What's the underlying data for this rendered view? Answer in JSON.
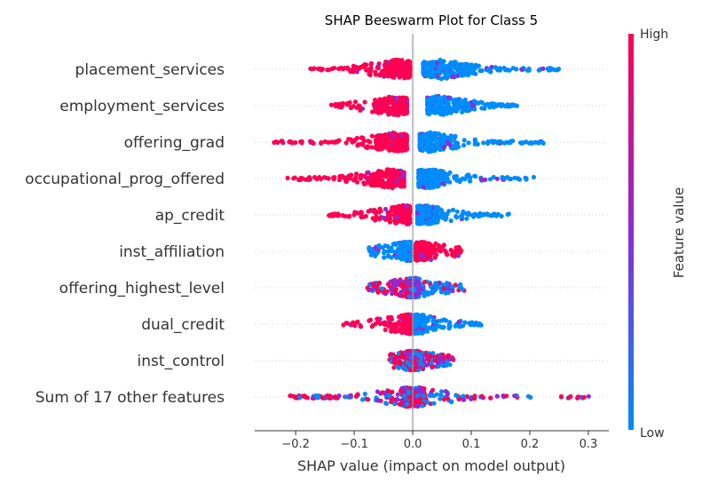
{
  "chart_data": {
    "type": "scatter",
    "subtype": "shap-beeswarm",
    "title": "SHAP Beeswarm Plot for Class 5",
    "xlabel": "SHAP value (impact on model output)",
    "xlim": [
      -0.27,
      0.335
    ],
    "x_ticks": [
      -0.2,
      -0.1,
      0.0,
      0.1,
      0.2,
      0.3
    ],
    "x_tick_labels": [
      "−0.2",
      "−0.1",
      "0.0",
      "0.1",
      "0.2",
      "0.3"
    ],
    "zero_line": 0,
    "colorbar": {
      "label": "Feature value",
      "high_label": "High",
      "low_label": "Low",
      "high_color": "#ff0052",
      "mid_color": "#8b2cd6",
      "low_color": "#008bfb"
    },
    "features": [
      {
        "name": "placement_services",
        "neg_range": [
          -0.19,
          -0.005
        ],
        "neg_color": "high",
        "pos_range": [
          0.018,
          0.255
        ],
        "pos_color": "low",
        "dense_neg": -0.025,
        "dense_pos": 0.05
      },
      {
        "name": "employment_services",
        "neg_range": [
          -0.14,
          -0.01
        ],
        "neg_color": "high",
        "pos_range": [
          0.025,
          0.185
        ],
        "pos_color": "low",
        "dense_neg": -0.03,
        "dense_pos": 0.045
      },
      {
        "name": "offering_grad",
        "neg_range": [
          -0.245,
          -0.01
        ],
        "neg_color": "high",
        "pos_range": [
          0.012,
          0.23
        ],
        "pos_color": "low",
        "dense_neg": -0.03,
        "dense_pos": 0.03
      },
      {
        "name": "occupational_prog_offered",
        "neg_range": [
          -0.215,
          -0.015
        ],
        "neg_color": "high",
        "pos_range": [
          0.01,
          0.21
        ],
        "pos_color": "low",
        "dense_neg": -0.035,
        "dense_pos": 0.025
      },
      {
        "name": "ap_credit",
        "neg_range": [
          -0.145,
          -0.005
        ],
        "neg_color": "high",
        "pos_range": [
          0.008,
          0.165
        ],
        "pos_color": "low",
        "dense_neg": -0.015,
        "dense_pos": 0.02
      },
      {
        "name": "inst_affiliation",
        "neg_range": [
          -0.075,
          -0.003
        ],
        "neg_color": "low",
        "pos_range": [
          0.005,
          0.085
        ],
        "pos_color": "high",
        "dense_neg": -0.01,
        "dense_pos": 0.015
      },
      {
        "name": "offering_highest_level",
        "neg_range": [
          -0.08,
          -0.002
        ],
        "neg_color": "mixed-high",
        "pos_range": [
          0.002,
          0.088
        ],
        "pos_color": "mixed-low",
        "dense_neg": -0.005,
        "dense_pos": 0.005
      },
      {
        "name": "dual_credit",
        "neg_range": [
          -0.12,
          -0.003
        ],
        "neg_color": "high",
        "pos_range": [
          0.003,
          0.12
        ],
        "pos_color": "low",
        "dense_neg": -0.008,
        "dense_pos": 0.01
      },
      {
        "name": "inst_control",
        "neg_range": [
          -0.04,
          -0.002
        ],
        "neg_color": "mixed",
        "pos_range": [
          0.002,
          0.07
        ],
        "pos_color": "mixed",
        "dense_neg": -0.005,
        "dense_pos": 0.008
      },
      {
        "name": "Sum of 17 other features",
        "neg_range": [
          -0.21,
          -0.002
        ],
        "neg_color": "mixed",
        "pos_range": [
          0.002,
          0.31
        ],
        "pos_color": "mixed",
        "dense_neg": -0.01,
        "dense_pos": 0.01
      }
    ]
  }
}
